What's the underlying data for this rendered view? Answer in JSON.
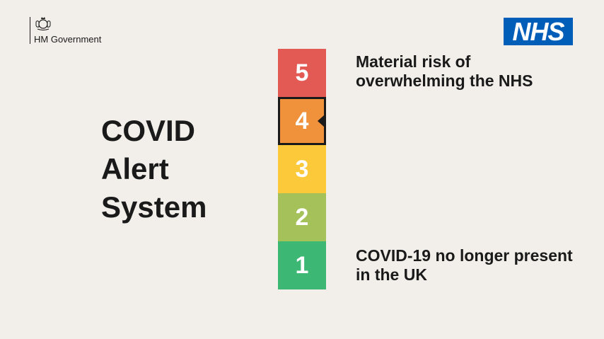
{
  "header": {
    "government_label": "HM Government",
    "nhs_logo": "NHS",
    "nhs_color": "#005eb8"
  },
  "title_lines": [
    "COVID",
    "Alert",
    "System"
  ],
  "levels": [
    {
      "number": "5",
      "color": "#e35a55"
    },
    {
      "number": "4",
      "color": "#f0913c"
    },
    {
      "number": "3",
      "color": "#fcc93b"
    },
    {
      "number": "2",
      "color": "#a4c15a"
    },
    {
      "number": "1",
      "color": "#3db874"
    }
  ],
  "current_level": "4",
  "descriptions": {
    "top": "Material risk of overwhelming the NHS",
    "bottom": "COVID-19 no longer present in the UK"
  }
}
